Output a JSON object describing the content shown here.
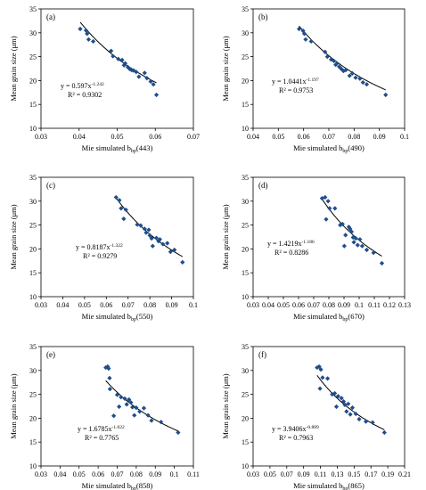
{
  "ylabel": "Mean grain size (μm)",
  "colors": {
    "point": "#1f4e8c",
    "fit": "#000000"
  },
  "chart_data": [
    {
      "type": "scatter",
      "tag": "(a)",
      "xlabel_main": "Mie simulated b",
      "xlabel_sub": "bp",
      "xlabel_suffix": "(443)",
      "xlim": [
        0.03,
        0.07
      ],
      "xticks": [
        0.03,
        0.04,
        0.05,
        0.06,
        0.07
      ],
      "xticklabels": [
        "0.03",
        "0.04",
        "0.05",
        "0.06",
        "0.07"
      ],
      "ylim": [
        10,
        35
      ],
      "yticks": [
        10,
        15,
        20,
        25,
        30,
        35
      ],
      "yticklabels": [
        "10",
        "15",
        "20",
        "25",
        "30",
        "35"
      ],
      "fit": {
        "a": 0.597,
        "b": -1.242,
        "eq_prefix": "y = 0.597x",
        "eq_exp": "-1.242",
        "r2": "R² = 0.9302"
      },
      "points": [
        [
          0.0403,
          30.8
        ],
        [
          0.0418,
          30.5
        ],
        [
          0.0421,
          29.8
        ],
        [
          0.0425,
          28.6
        ],
        [
          0.0437,
          28.2
        ],
        [
          0.0484,
          26.2
        ],
        [
          0.0489,
          25.1
        ],
        [
          0.0503,
          24.5
        ],
        [
          0.0513,
          24.3
        ],
        [
          0.0518,
          23.2
        ],
        [
          0.0521,
          23.6
        ],
        [
          0.0528,
          22.8
        ],
        [
          0.0533,
          22.4
        ],
        [
          0.0538,
          22.2
        ],
        [
          0.0543,
          22.1
        ],
        [
          0.055,
          21.8
        ],
        [
          0.0557,
          20.8
        ],
        [
          0.0572,
          21.6
        ],
        [
          0.0578,
          20.5
        ],
        [
          0.0588,
          19.8
        ],
        [
          0.0595,
          19.2
        ],
        [
          0.0603,
          17.0
        ]
      ]
    },
    {
      "type": "scatter",
      "tag": "(b)",
      "xlabel_main": "Mie simulated b",
      "xlabel_sub": "bp",
      "xlabel_suffix": "(490)",
      "xlim": [
        0.04,
        0.1
      ],
      "xticks": [
        0.04,
        0.05,
        0.06,
        0.07,
        0.08,
        0.09,
        0.1
      ],
      "xticklabels": [
        "0.04",
        "0.05",
        "0.06",
        "0.07",
        "0.08",
        "0.09",
        "0.1"
      ],
      "ylim": [
        10,
        35
      ],
      "yticks": [
        10,
        15,
        20,
        25,
        30,
        35
      ],
      "yticklabels": [
        "10",
        "15",
        "20",
        "25",
        "30",
        "35"
      ],
      "fit": {
        "a": 1.0441,
        "b": -1.197,
        "eq_prefix": "y = 1.0441x",
        "eq_exp": "-1.197",
        "r2": "R² = 0.9753"
      },
      "points": [
        [
          0.0582,
          30.8
        ],
        [
          0.0598,
          30.4
        ],
        [
          0.0603,
          29.8
        ],
        [
          0.0608,
          28.6
        ],
        [
          0.063,
          28.2
        ],
        [
          0.0685,
          26.0
        ],
        [
          0.0694,
          25.0
        ],
        [
          0.0709,
          24.4
        ],
        [
          0.072,
          24.1
        ],
        [
          0.0727,
          23.3
        ],
        [
          0.0732,
          23.6
        ],
        [
          0.0741,
          22.9
        ],
        [
          0.075,
          22.4
        ],
        [
          0.0758,
          22.0
        ],
        [
          0.0767,
          22.2
        ],
        [
          0.0782,
          21.0
        ],
        [
          0.0793,
          21.5
        ],
        [
          0.0806,
          20.6
        ],
        [
          0.0823,
          20.4
        ],
        [
          0.0835,
          19.6
        ],
        [
          0.085,
          19.2
        ],
        [
          0.0925,
          17.0
        ]
      ]
    },
    {
      "type": "scatter",
      "tag": "(c)",
      "xlabel_main": "Mie simulated b",
      "xlabel_sub": "bp",
      "xlabel_suffix": "(550)",
      "xlim": [
        0.03,
        0.1
      ],
      "xticks": [
        0.03,
        0.04,
        0.05,
        0.06,
        0.07,
        0.08,
        0.09,
        0.1
      ],
      "xticklabels": [
        "0.03",
        "0.04",
        "0.05",
        "0.06",
        "0.07",
        "0.08",
        "0.09",
        "0.1"
      ],
      "ylim": [
        10,
        35
      ],
      "yticks": [
        10,
        15,
        20,
        25,
        30,
        35
      ],
      "yticklabels": [
        "10",
        "15",
        "20",
        "25",
        "30",
        "35"
      ],
      "fit": {
        "a": 0.8187,
        "b": -1.322,
        "eq_prefix": "y = 0.8187x",
        "eq_exp": "-1.322",
        "r2": "R² = 0.9279"
      },
      "points": [
        [
          0.0645,
          30.8
        ],
        [
          0.066,
          30.2
        ],
        [
          0.0668,
          28.5
        ],
        [
          0.068,
          26.3
        ],
        [
          0.069,
          28.2
        ],
        [
          0.0742,
          25.1
        ],
        [
          0.0758,
          24.9
        ],
        [
          0.0776,
          24.2
        ],
        [
          0.0783,
          23.4
        ],
        [
          0.0795,
          24.0
        ],
        [
          0.08,
          22.8
        ],
        [
          0.0808,
          22.2
        ],
        [
          0.0813,
          20.6
        ],
        [
          0.083,
          22.3
        ],
        [
          0.084,
          21.6
        ],
        [
          0.0846,
          22.0
        ],
        [
          0.086,
          21.0
        ],
        [
          0.088,
          21.2
        ],
        [
          0.0895,
          19.4
        ],
        [
          0.0913,
          19.8
        ],
        [
          0.095,
          17.2
        ]
      ]
    },
    {
      "type": "scatter",
      "tag": "(d)",
      "xlabel_main": "Mie simulated b",
      "xlabel_sub": "bp",
      "xlabel_suffix": "(670)",
      "xlim": [
        0.03,
        0.13
      ],
      "xticks": [
        0.03,
        0.04,
        0.05,
        0.06,
        0.07,
        0.08,
        0.09,
        0.1,
        0.11,
        0.12,
        0.13
      ],
      "xticklabels": [
        "0.03",
        "0.04",
        "0.05",
        "0.06",
        "0.07",
        "0.08",
        "0.09",
        "0.1",
        "0.11",
        "0.12",
        "0.13"
      ],
      "ylim": [
        10,
        35
      ],
      "yticks": [
        10,
        15,
        20,
        25,
        30,
        35
      ],
      "yticklabels": [
        "10",
        "15",
        "20",
        "25",
        "30",
        "35"
      ],
      "fit": {
        "a": 1.4219,
        "b": -1.186,
        "eq_prefix": "y = 1.4219x",
        "eq_exp": "-1.186",
        "r2": "R² = 0.8286"
      },
      "points": [
        [
          0.0755,
          30.6
        ],
        [
          0.0775,
          30.8
        ],
        [
          0.0782,
          26.2
        ],
        [
          0.0795,
          30.0
        ],
        [
          0.0805,
          28.5
        ],
        [
          0.084,
          28.5
        ],
        [
          0.0875,
          25.0
        ],
        [
          0.089,
          25.2
        ],
        [
          0.0902,
          20.6
        ],
        [
          0.091,
          22.9
        ],
        [
          0.0932,
          24.6
        ],
        [
          0.094,
          24.2
        ],
        [
          0.095,
          23.6
        ],
        [
          0.096,
          22.4
        ],
        [
          0.0965,
          21.4
        ],
        [
          0.0978,
          22.2
        ],
        [
          0.099,
          20.8
        ],
        [
          0.1005,
          22.0
        ],
        [
          0.102,
          20.6
        ],
        [
          0.105,
          19.8
        ],
        [
          0.1095,
          19.2
        ],
        [
          0.115,
          17.0
        ]
      ]
    },
    {
      "type": "scatter",
      "tag": "(e)",
      "xlabel_main": "Mie simulated b",
      "xlabel_sub": "bp",
      "xlabel_suffix": "(858)",
      "xlim": [
        0.03,
        0.11
      ],
      "xticks": [
        0.03,
        0.04,
        0.05,
        0.06,
        0.07,
        0.08,
        0.09,
        0.1,
        0.11
      ],
      "xticklabels": [
        "0.03",
        "0.04",
        "0.05",
        "0.06",
        "0.07",
        "0.08",
        "0.09",
        "0.1",
        "0.11"
      ],
      "ylim": [
        10,
        35
      ],
      "yticks": [
        10,
        15,
        20,
        25,
        30,
        35
      ],
      "yticklabels": [
        "10",
        "15",
        "20",
        "25",
        "30",
        "35"
      ],
      "fit": {
        "a": 1.6785,
        "b": -1.022,
        "eq_prefix": "y = 1.6785x",
        "eq_exp": "-1.022",
        "r2": "R² = 0.7765"
      },
      "points": [
        [
          0.064,
          30.6
        ],
        [
          0.065,
          30.8
        ],
        [
          0.0655,
          30.4
        ],
        [
          0.066,
          28.4
        ],
        [
          0.0662,
          26.1
        ],
        [
          0.0682,
          20.5
        ],
        [
          0.07,
          24.9
        ],
        [
          0.071,
          22.4
        ],
        [
          0.072,
          24.4
        ],
        [
          0.074,
          24.1
        ],
        [
          0.075,
          22.9
        ],
        [
          0.0762,
          23.9
        ],
        [
          0.0772,
          23.3
        ],
        [
          0.078,
          22.3
        ],
        [
          0.079,
          20.6
        ],
        [
          0.08,
          22.2
        ],
        [
          0.0818,
          21.4
        ],
        [
          0.084,
          22.1
        ],
        [
          0.0862,
          20.6
        ],
        [
          0.088,
          19.5
        ],
        [
          0.093,
          19.2
        ],
        [
          0.102,
          17.0
        ]
      ]
    },
    {
      "type": "scatter",
      "tag": "(f)",
      "xlabel_main": "Mie simulated b",
      "xlabel_sub": "bp",
      "xlabel_suffix": "(865)",
      "xlim": [
        0.03,
        0.21
      ],
      "xticks": [
        0.03,
        0.05,
        0.07,
        0.09,
        0.11,
        0.13,
        0.15,
        0.17,
        0.19,
        0.21
      ],
      "xticklabels": [
        "0.03",
        "0.05",
        "0.07",
        "0.09",
        "0.11",
        "0.13",
        "0.15",
        "0.17",
        "0.19",
        "0.21"
      ],
      "ylim": [
        10,
        35
      ],
      "yticks": [
        10,
        15,
        20,
        25,
        30,
        35
      ],
      "yticklabels": [
        "10",
        "15",
        "20",
        "25",
        "30",
        "35"
      ],
      "fit": {
        "a": 3.9406,
        "b": -0.889,
        "eq_prefix": "y = 3.9406x",
        "eq_exp": "-0.889",
        "r2": "R² = 0.7963"
      },
      "points": [
        [
          0.106,
          30.6
        ],
        [
          0.1085,
          30.8
        ],
        [
          0.1095,
          26.2
        ],
        [
          0.1105,
          30.2
        ],
        [
          0.1125,
          28.5
        ],
        [
          0.1185,
          28.3
        ],
        [
          0.124,
          25.0
        ],
        [
          0.127,
          25.2
        ],
        [
          0.129,
          22.4
        ],
        [
          0.131,
          24.6
        ],
        [
          0.135,
          24.2
        ],
        [
          0.1375,
          23.5
        ],
        [
          0.139,
          22.8
        ],
        [
          0.141,
          21.4
        ],
        [
          0.143,
          23.0
        ],
        [
          0.1455,
          20.8
        ],
        [
          0.148,
          22.2
        ],
        [
          0.152,
          20.9
        ],
        [
          0.156,
          19.8
        ],
        [
          0.164,
          19.3
        ],
        [
          0.172,
          19.1
        ],
        [
          0.186,
          17.0
        ]
      ]
    }
  ]
}
